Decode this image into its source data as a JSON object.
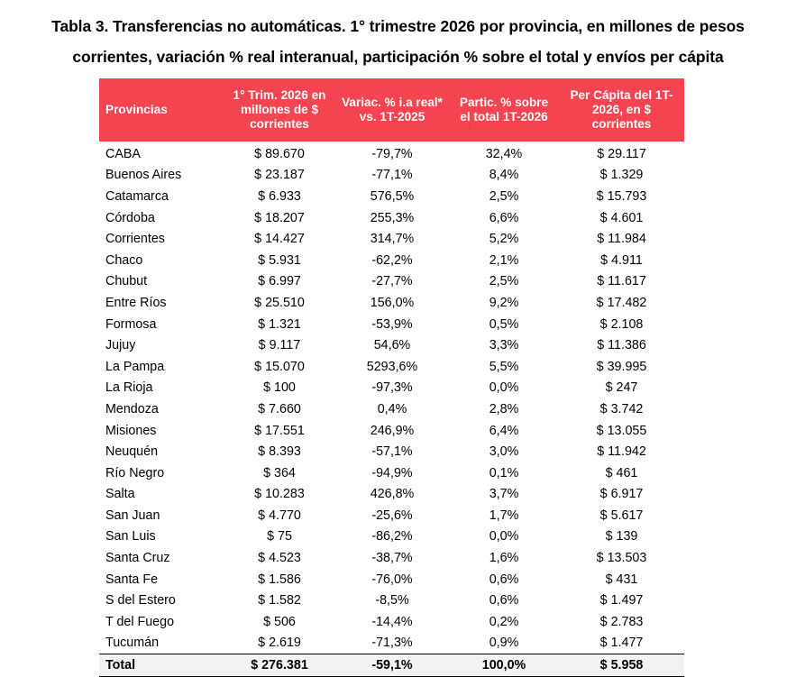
{
  "title": {
    "line1": "Tabla 3. Transferencias no automáticas. 1° trimestre 2026 por provincia, en millones de pesos",
    "line2": "corrientes, variación % real interanual, participación % sobre el total y envíos per cápita"
  },
  "colors": {
    "header_bg": "#f4444f",
    "header_text": "#ffffff",
    "total_bg": "#f2f2f2"
  },
  "table": {
    "headers": [
      "Provincias",
      "1° Trim. 2026 en millones de $ corrientes",
      "Variac. % i.a real* vs. 1T-2025",
      "Partic. % sobre el total 1T-2026",
      "Per Cápita del 1T-2026, en $ corrientes"
    ],
    "rows": [
      [
        "CABA",
        "$ 89.670",
        "-79,7%",
        "32,4%",
        "$ 29.117"
      ],
      [
        "Buenos Aires",
        "$ 23.187",
        "-77,1%",
        "8,4%",
        "$ 1.329"
      ],
      [
        "Catamarca",
        "$ 6.933",
        "576,5%",
        "2,5%",
        "$ 15.793"
      ],
      [
        "Córdoba",
        "$ 18.207",
        "255,3%",
        "6,6%",
        "$ 4.601"
      ],
      [
        "Corrientes",
        "$ 14.427",
        "314,7%",
        "5,2%",
        "$ 11.984"
      ],
      [
        "Chaco",
        "$ 5.931",
        "-62,2%",
        "2,1%",
        "$ 4.911"
      ],
      [
        "Chubut",
        "$ 6.997",
        "-27,7%",
        "2,5%",
        "$ 11.617"
      ],
      [
        "Entre Ríos",
        "$ 25.510",
        "156,0%",
        "9,2%",
        "$ 17.482"
      ],
      [
        "Formosa",
        "$ 1.321",
        "-53,9%",
        "0,5%",
        "$ 2.108"
      ],
      [
        "Jujuy",
        "$ 9.117",
        "54,6%",
        "3,3%",
        "$ 11.386"
      ],
      [
        "La Pampa",
        "$ 15.070",
        "5293,6%",
        "5,5%",
        "$ 39.995"
      ],
      [
        "La Rioja",
        "$ 100",
        "-97,3%",
        "0,0%",
        "$ 247"
      ],
      [
        "Mendoza",
        "$ 7.660",
        "0,4%",
        "2,8%",
        "$ 3.742"
      ],
      [
        "Misiones",
        "$ 17.551",
        "246,9%",
        "6,4%",
        "$ 13.055"
      ],
      [
        "Neuquén",
        "$ 8.393",
        "-57,1%",
        "3,0%",
        "$ 11.942"
      ],
      [
        "Río Negro",
        "$ 364",
        "-94,9%",
        "0,1%",
        "$ 461"
      ],
      [
        "Salta",
        "$ 10.283",
        "426,8%",
        "3,7%",
        "$ 6.917"
      ],
      [
        "San Juan",
        "$ 4.770",
        "-25,6%",
        "1,7%",
        "$ 5.617"
      ],
      [
        "San Luis",
        "$ 75",
        "-86,2%",
        "0,0%",
        "$ 139"
      ],
      [
        "Santa Cruz",
        "$ 4.523",
        "-38,7%",
        "1,6%",
        "$ 13.503"
      ],
      [
        "Santa Fe",
        "$ 1.586",
        "-76,0%",
        "0,6%",
        "$ 431"
      ],
      [
        "S del Estero",
        "$ 1.582",
        "-8,5%",
        "0,6%",
        "$ 1.497"
      ],
      [
        "T del Fuego",
        "$ 506",
        "-14,4%",
        "0,2%",
        "$ 2.783"
      ],
      [
        "Tucumán",
        "$ 2.619",
        "-71,3%",
        "0,9%",
        "$ 1.477"
      ]
    ],
    "total": [
      "Total",
      "$ 276.381",
      "-59,1%",
      "100,0%",
      "$ 5.958"
    ]
  }
}
